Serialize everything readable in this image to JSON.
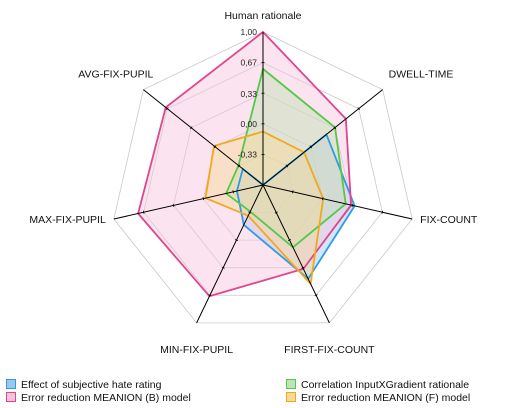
{
  "chart_data": {
    "type": "radar",
    "axes": [
      "Human rationale",
      "DWELL-TIME",
      "FIX-COUNT",
      "FIRST-FIX-COUNT",
      "MIN-FIX-PUPIL",
      "MAX-FIX-PUPIL",
      "AVG-FIX-PUPIL"
    ],
    "rlim": [
      -0.66,
      1.0
    ],
    "ticks": [
      "1,00",
      "0,67",
      "0,33",
      "0,00",
      "-0,33"
    ],
    "tick_values": [
      1.0,
      0.67,
      0.33,
      0.0,
      -0.33
    ],
    "series": [
      {
        "name": "Effect of subjective hate rating",
        "color": "#2e9be6",
        "fill": "#9cc8ee",
        "values": [
          -0.66,
          0.22,
          0.36,
          0.47,
          -0.18,
          -0.37,
          -0.38
        ]
      },
      {
        "name": "Error reduction MEANION (B) model",
        "color": "#e0458f",
        "fill": "#f7c3dc",
        "values": [
          1.0,
          0.49,
          0.32,
          0.35,
          0.68,
          0.73,
          0.69
        ]
      },
      {
        "name": "Correlation InputXGradient rationale",
        "color": "#55c84a",
        "fill": "#bfe3b4",
        "values": [
          0.6,
          0.34,
          0.26,
          0.09,
          -0.34,
          -0.25,
          -0.32
        ]
      },
      {
        "name": "Error reduction MEANION (F) model",
        "color": "#f2a81d",
        "fill": "#f7d99a",
        "values": [
          -0.08,
          -0.09,
          0.01,
          0.53,
          -0.29,
          -0.02,
          0.02
        ]
      }
    ],
    "legend_position": "bottom"
  }
}
